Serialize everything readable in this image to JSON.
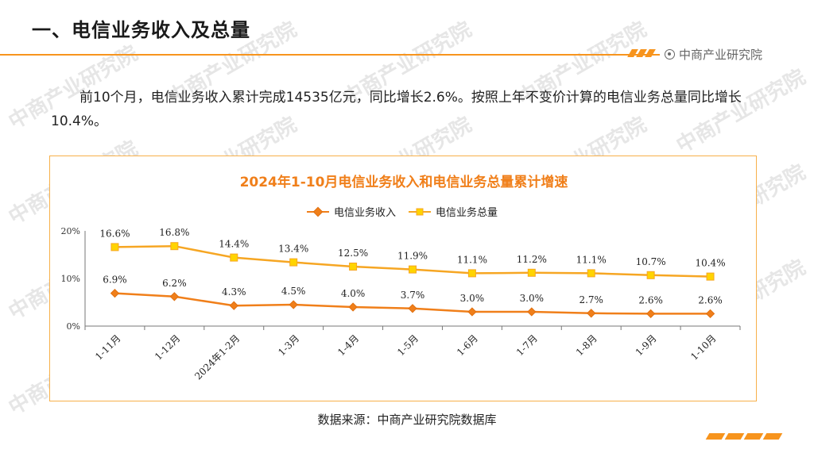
{
  "header": {
    "title": "一、电信业务收入及总量",
    "brand": "中商产业研究院"
  },
  "watermark": "中商产业研究院",
  "paragraph": "前10个月，电信业务收入累计完成14535亿元，同比增长2.6%。按照上年不变价计算的电信业务总量同比增长10.4%。",
  "chart_data": {
    "type": "line",
    "title": "2024年1-10月电信业务收入和电信业务总量累计增速",
    "categories": [
      "1-11月",
      "1-12月",
      "2024年1-2月",
      "1-3月",
      "1-4月",
      "1-5月",
      "1-6月",
      "1-7月",
      "1-8月",
      "1-9月",
      "1-10月"
    ],
    "series": [
      {
        "name": "电信业务收入",
        "values": [
          6.9,
          6.2,
          4.3,
          4.5,
          4.0,
          3.7,
          3.0,
          3.0,
          2.7,
          2.6,
          2.6
        ],
        "labels": [
          "6.9%",
          "6.2%",
          "4.3%",
          "4.5%",
          "4.0%",
          "3.7%",
          "3.0%",
          "3.0%",
          "2.7%",
          "2.6%",
          "2.6%"
        ],
        "color": "#f07f1a",
        "marker": "diamond"
      },
      {
        "name": "电信业务总量",
        "values": [
          16.6,
          16.8,
          14.4,
          13.4,
          12.5,
          11.9,
          11.1,
          11.2,
          11.1,
          10.7,
          10.4
        ],
        "labels": [
          "16.6%",
          "16.8%",
          "14.4%",
          "13.4%",
          "12.5%",
          "11.9%",
          "11.1%",
          "11.2%",
          "11.1%",
          "10.7%",
          "10.4%"
        ],
        "color": "#f6a623",
        "marker": "square"
      }
    ],
    "yticks": [
      "0%",
      "10%",
      "20%"
    ],
    "ylim": [
      0,
      20
    ],
    "legend": "top-center",
    "grid": false
  },
  "source": "数据来源：中商产业研究院数据库"
}
